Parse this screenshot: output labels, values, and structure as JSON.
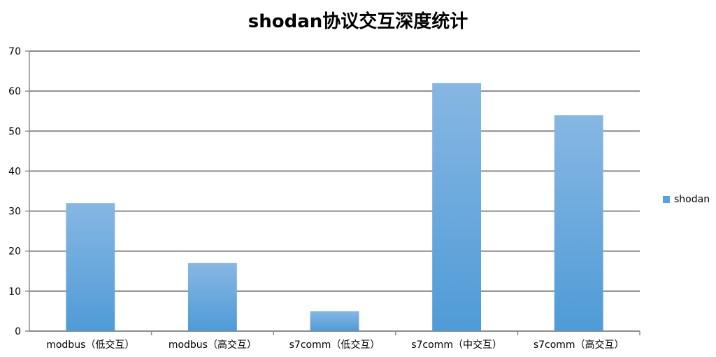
{
  "chart_data": {
    "type": "bar",
    "title": "shodan协议交互深度统计",
    "categories": [
      "modbus（低交互）",
      "modbus（高交互）",
      "s7comm（低交互）",
      "s7comm（中交互）",
      "s7comm（高交互）"
    ],
    "series": [
      {
        "name": "shodan",
        "values": [
          32,
          17,
          5,
          62,
          54
        ],
        "color": "#5aa0da"
      }
    ],
    "ylim": [
      0,
      70
    ],
    "yticks": [
      0,
      10,
      20,
      30,
      40,
      50,
      60,
      70
    ],
    "xlabel": "",
    "ylabel": "",
    "grid": true,
    "legend_position": "right"
  }
}
